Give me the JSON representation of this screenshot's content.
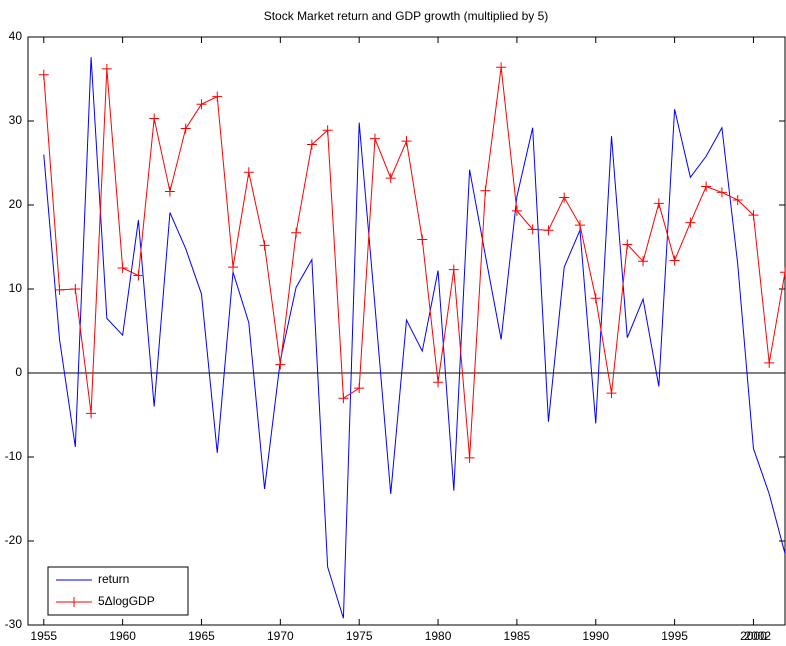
{
  "chart_data": {
    "type": "line",
    "title": "Stock Market return and GDP growth (multiplied by 5)",
    "x": [
      1955,
      1956,
      1957,
      1958,
      1959,
      1960,
      1961,
      1962,
      1963,
      1964,
      1965,
      1966,
      1967,
      1968,
      1969,
      1970,
      1971,
      1972,
      1973,
      1974,
      1975,
      1976,
      1977,
      1978,
      1979,
      1980,
      1981,
      1982,
      1983,
      1984,
      1985,
      1986,
      1987,
      1988,
      1989,
      1990,
      1991,
      1992,
      1993,
      1994,
      1995,
      1996,
      1997,
      1998,
      1999,
      2000,
      2001,
      2002
    ],
    "series": [
      {
        "name": "return",
        "color": "#0000ff",
        "marker": "none",
        "values": [
          26,
          4,
          -8.8,
          37.6,
          6.5,
          4.5,
          18.2,
          -4,
          19.1,
          14.8,
          9.4,
          -9.5,
          12,
          6,
          -13.8,
          1.5,
          10.2,
          13.5,
          -23.1,
          -29.2,
          29.8,
          8,
          -14.4,
          6.3,
          2.6,
          12.2,
          -14,
          24.2,
          14,
          4,
          21,
          29.2,
          -5.8,
          12.6,
          17,
          -6,
          28.2,
          4.2,
          8.8,
          -1.6,
          31.4,
          23.3,
          25.8,
          29.2,
          13,
          -9,
          -14.4,
          -21.5
        ]
      },
      {
        "name": "5ΔlogGDP",
        "color": "#ff0000",
        "marker": "plus",
        "values": [
          35.5,
          9.9,
          10,
          -4.8,
          36.2,
          12.5,
          11.6,
          30.3,
          21.6,
          29.1,
          32,
          32.9,
          12.6,
          23.9,
          15.2,
          1,
          16.7,
          27.2,
          28.9,
          -3,
          -1.8,
          27.9,
          23.2,
          27.6,
          15.9,
          -1.1,
          12.3,
          -10.1,
          21.7,
          36.4,
          19.3,
          17.1,
          17,
          20.9,
          17.6,
          8.9,
          -2.4,
          15.3,
          13.3,
          20.2,
          13.4,
          17.9,
          22.2,
          21.5,
          20.6,
          18.8,
          1.2,
          12
        ]
      }
    ],
    "xlim": [
      1954,
      2002
    ],
    "xticks": [
      1955,
      1960,
      1965,
      1970,
      1975,
      1980,
      1985,
      1990,
      1995,
      2000,
      2002
    ],
    "ylim": [
      -30,
      40
    ],
    "yticks": [
      -30,
      -20,
      -10,
      0,
      10,
      20,
      30,
      40
    ],
    "grid": false,
    "legend": "lower left"
  }
}
